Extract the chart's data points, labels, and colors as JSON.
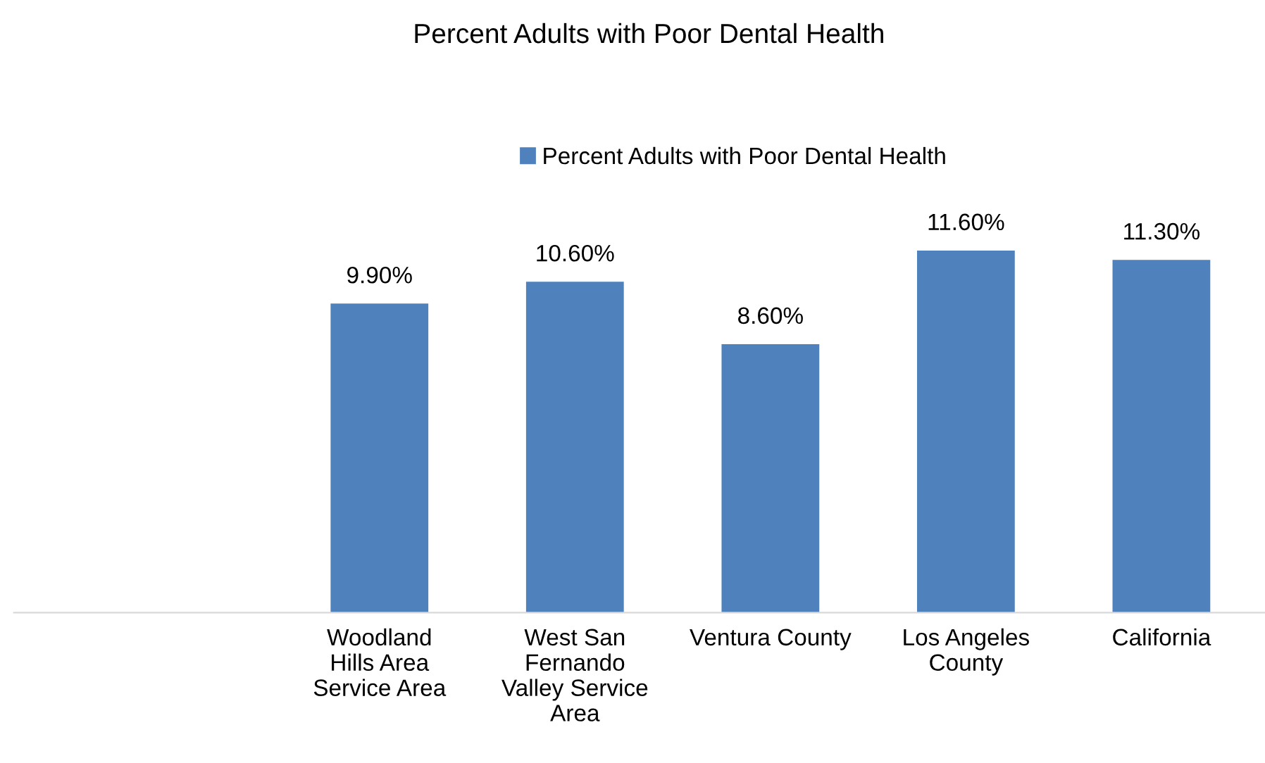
{
  "chart_data": {
    "type": "bar",
    "title": "Percent Adults with Poor Dental Health",
    "categories": [
      "Woodland\nHills Area\nService Area",
      "West San\nFernando\nValley Service\nArea",
      "Ventura County",
      "Los Angeles\nCounty",
      "California"
    ],
    "series": [
      {
        "name": "Percent Adults with Poor Dental Health",
        "color": "#4f81bd",
        "values": [
          9.9,
          10.6,
          8.6,
          11.6,
          11.3
        ],
        "value_labels": [
          "9.90%",
          "10.60%",
          "8.60%",
          "11.60%",
          "11.30%"
        ]
      }
    ],
    "legend": "top",
    "grid": false
  }
}
